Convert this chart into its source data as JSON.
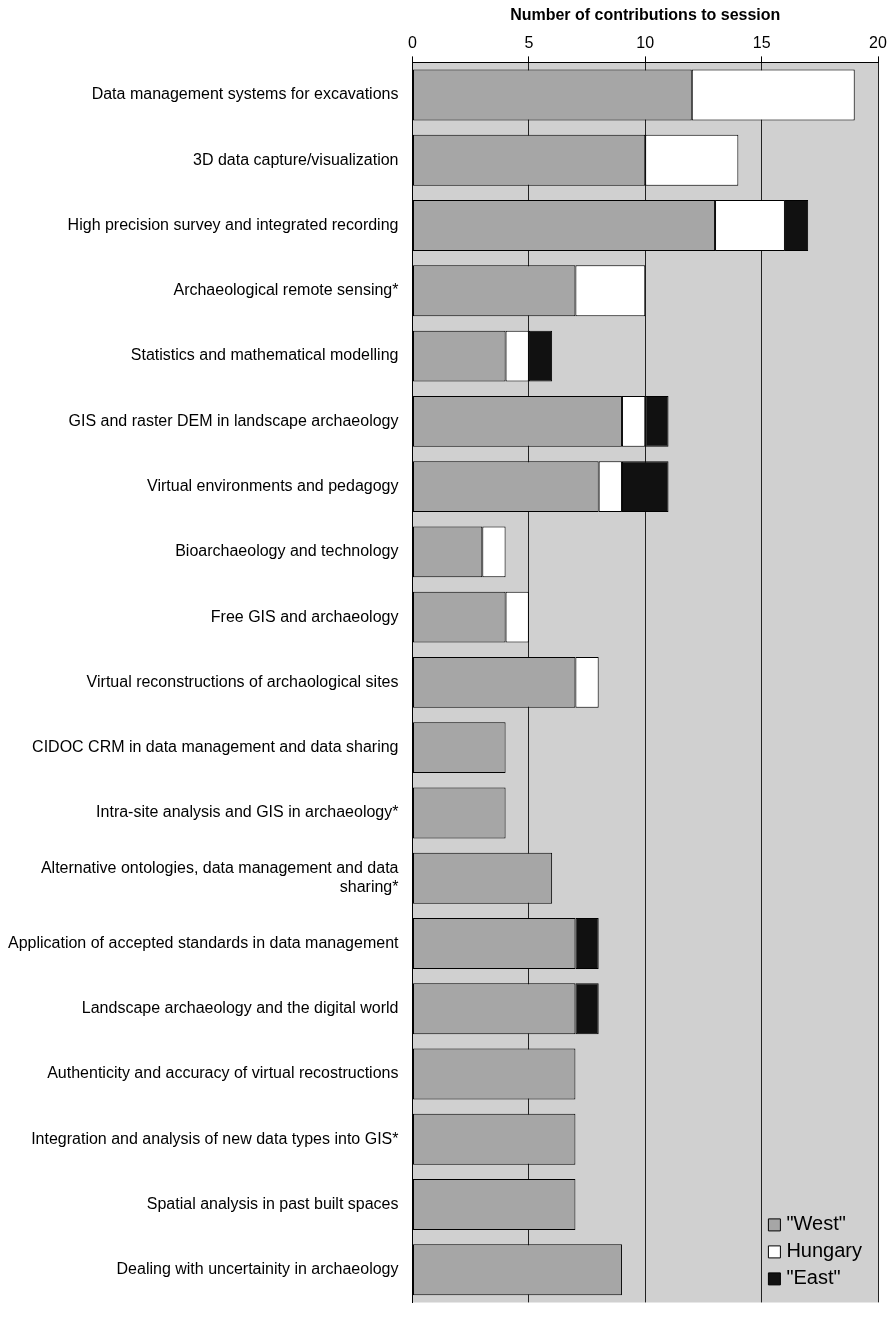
{
  "chart_data": {
    "type": "bar",
    "orientation": "horizontal",
    "stacked": true,
    "xlabel": "Number of contributions to session",
    "categories": [
      "Data management systems for excavations",
      "3D data capture/visualization",
      "High precision survey and integrated recording",
      "Archaeological remote sensing*",
      "Statistics and mathematical modelling",
      "GIS and raster DEM in landscape archaeology",
      "Virtual environments and pedagogy",
      "Bioarchaeology and technology",
      "Free GIS and archaeology",
      "Virtual reconstructions of archaological sites",
      "CIDOC CRM in data management and data sharing",
      "Intra-site analysis and GIS in archaeology*",
      "Alternative ontologies, data management and data sharing*",
      "Application of accepted standards in data management",
      "Landscape archaeology and the digital world",
      "Authenticity and accuracy of virtual recostructions",
      "Integration and analysis of new data types into GIS*",
      "Spatial analysis in past built spaces",
      "Dealing with uncertainity in archaeology"
    ],
    "series": [
      {
        "name": "\"West\"",
        "color": "#a6a6a6",
        "values": [
          12,
          10,
          13,
          7,
          4,
          9,
          8,
          3,
          4,
          7,
          4,
          4,
          6,
          7,
          7,
          7,
          7,
          7,
          9
        ]
      },
      {
        "name": "Hungary",
        "color": "#ffffff",
        "values": [
          7,
          4,
          3,
          3,
          1,
          1,
          1,
          1,
          1,
          1,
          null,
          null,
          null,
          null,
          null,
          null,
          null,
          null,
          null
        ]
      },
      {
        "name": "\"East\"",
        "color": "#111111",
        "values": [
          null,
          null,
          1,
          null,
          1,
          1,
          2,
          null,
          null,
          null,
          null,
          null,
          null,
          1,
          1,
          null,
          null,
          null,
          null
        ]
      }
    ],
    "xlim": [
      0,
      20
    ],
    "xticks": [
      0,
      5,
      10,
      15,
      20
    ],
    "grid": "x",
    "legend": "bottom right"
  }
}
